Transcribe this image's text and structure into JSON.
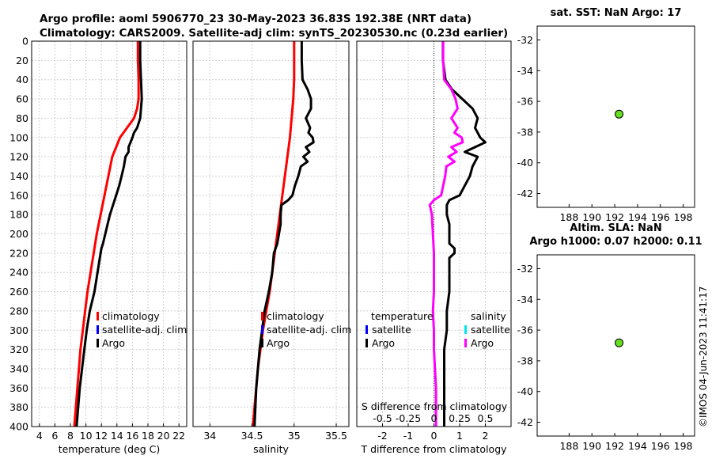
{
  "title_line1": "Argo profile: aoml 5906770_23 30-May-2023 36.83S 192.38E (NRT data)",
  "title_line2": "Climatology: CARS2009. Satellite-adj clim: synTS_20230530.nc (0.23d earlier)",
  "side_label": "©IMOS 04-Jun-2023 11:41:17",
  "colors": {
    "climatology": "#ff0000",
    "satellite": "#0000ff",
    "argo": "#000000",
    "satellite_s": "#00e5ee",
    "argo_diff": "#ff00ff",
    "marker": "#66dd22"
  },
  "depth_axis": {
    "ticks": [
      "0",
      "20",
      "40",
      "60",
      "80",
      "100",
      "120",
      "140",
      "160",
      "180",
      "200",
      "220",
      "240",
      "260",
      "280",
      "300",
      "320",
      "340",
      "360",
      "380",
      "400"
    ]
  },
  "chart_data": [
    {
      "type": "line",
      "name": "temperature",
      "xlabel": "temperature (deg C)",
      "xlim": [
        3,
        23
      ],
      "ylim": [
        0,
        400
      ],
      "xticks": [
        "4",
        "6",
        "8",
        "10",
        "12",
        "14",
        "16",
        "18",
        "20",
        "22"
      ],
      "legend": [
        "climatology",
        "satellite-adj. clim",
        "Argo"
      ],
      "series": [
        {
          "name": "climatology",
          "color": "red",
          "depth": [
            0,
            20,
            40,
            60,
            70,
            80,
            90,
            100,
            110,
            120,
            140,
            160,
            180,
            200,
            220,
            240,
            260,
            280,
            300,
            320,
            340,
            360,
            380,
            400
          ],
          "values": [
            16.7,
            16.7,
            16.8,
            16.8,
            16.6,
            16.2,
            15.3,
            14.4,
            13.9,
            13.4,
            12.9,
            12.4,
            11.9,
            11.4,
            11.0,
            10.6,
            10.2,
            9.9,
            9.6,
            9.3,
            9.1,
            8.9,
            8.7,
            8.5
          ]
        },
        {
          "name": "Argo",
          "color": "black",
          "depth": [
            0,
            20,
            40,
            60,
            70,
            80,
            90,
            95,
            100,
            110,
            115,
            120,
            130,
            140,
            150,
            160,
            170,
            180,
            190,
            200,
            210,
            215,
            225,
            240,
            260,
            280,
            300,
            320,
            340,
            360,
            380,
            400
          ],
          "values": [
            17.0,
            17.0,
            17.1,
            17.2,
            17.1,
            17.0,
            16.6,
            16.2,
            16.0,
            15.5,
            15.5,
            15.1,
            14.9,
            14.6,
            14.3,
            13.9,
            13.5,
            13.1,
            12.8,
            12.5,
            12.2,
            12.0,
            11.8,
            11.5,
            11.1,
            10.5,
            10.1,
            9.8,
            9.5,
            9.2,
            9.0,
            8.8
          ]
        }
      ]
    },
    {
      "type": "line",
      "name": "salinity",
      "xlabel": "salinity",
      "xlim": [
        33.8,
        35.65
      ],
      "ylim": [
        0,
        400
      ],
      "xticks": [
        "34",
        "34.5",
        "35",
        "35.5"
      ],
      "legend": [
        "climatology",
        "satellite-adj. clim",
        "Argo"
      ],
      "series": [
        {
          "name": "climatology",
          "color": "red",
          "depth": [
            0,
            20,
            40,
            60,
            80,
            100,
            120,
            140,
            160,
            180,
            200,
            220,
            240,
            260,
            280,
            300,
            320,
            340,
            360,
            380,
            400
          ],
          "values": [
            35.0,
            35.0,
            35.0,
            34.99,
            34.97,
            34.95,
            34.92,
            34.89,
            34.86,
            34.83,
            34.8,
            34.77,
            34.74,
            34.71,
            34.67,
            34.63,
            34.6,
            34.57,
            34.55,
            34.53,
            34.51
          ]
        },
        {
          "name": "Argo",
          "color": "black",
          "depth": [
            0,
            20,
            40,
            50,
            60,
            70,
            80,
            90,
            95,
            100,
            105,
            110,
            115,
            120,
            125,
            130,
            140,
            150,
            160,
            165,
            170,
            180,
            190,
            200,
            210,
            220,
            240,
            260,
            280,
            300,
            320,
            340,
            360,
            380,
            400
          ],
          "values": [
            35.09,
            35.09,
            35.1,
            35.16,
            35.2,
            35.2,
            35.14,
            35.19,
            35.17,
            35.22,
            35.23,
            35.14,
            35.18,
            35.11,
            35.16,
            35.08,
            35.05,
            35.01,
            34.98,
            34.93,
            34.85,
            34.84,
            34.84,
            34.82,
            34.8,
            34.76,
            34.74,
            34.7,
            34.65,
            34.62,
            34.59,
            34.57,
            34.55,
            34.54,
            34.53
          ]
        }
      ]
    },
    {
      "type": "line",
      "name": "difference",
      "xlabel": "T difference from climatology",
      "xlabel_top": "S difference from climatology",
      "xlim": [
        -3,
        3
      ],
      "ylim": [
        0,
        400
      ],
      "xticks": [
        "-2",
        "-1",
        "0",
        "1",
        "2"
      ],
      "xticks_top": [
        "-0.5",
        "-0.25",
        "0",
        "0.25",
        "0.5"
      ],
      "legend_t": {
        "header": "temperature",
        "items": [
          "satellite",
          "Argo"
        ]
      },
      "legend_s": {
        "header": "salinity",
        "items": [
          "satellite",
          "Argo"
        ]
      },
      "series": [
        {
          "name": "T Argo - clim",
          "color": "black",
          "depth": [
            0,
            20,
            40,
            50,
            60,
            70,
            80,
            90,
            95,
            100,
            105,
            110,
            115,
            120,
            130,
            140,
            150,
            160,
            165,
            170,
            180,
            190,
            200,
            210,
            215,
            220,
            225,
            240,
            260,
            280,
            300,
            320,
            340,
            360,
            380,
            400
          ],
          "values": [
            0.35,
            0.35,
            0.45,
            0.7,
            1.1,
            1.5,
            1.7,
            1.6,
            1.7,
            1.8,
            2.0,
            1.6,
            1.2,
            1.7,
            1.5,
            1.4,
            1.2,
            1.0,
            0.6,
            0.5,
            0.5,
            0.6,
            0.6,
            0.6,
            0.8,
            0.8,
            0.6,
            0.6,
            0.6,
            0.5,
            0.5,
            0.4,
            0.4,
            0.4,
            0.4,
            0.4
          ]
        },
        {
          "name": "S Argo - clim",
          "color": "magenta",
          "depth": [
            0,
            20,
            40,
            50,
            60,
            70,
            80,
            90,
            95,
            100,
            105,
            110,
            115,
            120,
            125,
            130,
            140,
            150,
            160,
            165,
            170,
            180,
            200,
            220,
            240,
            260,
            280,
            300,
            320,
            340,
            360,
            380,
            400
          ],
          "values": [
            0.09,
            0.09,
            0.1,
            0.17,
            0.21,
            0.23,
            0.17,
            0.23,
            0.2,
            0.27,
            0.28,
            0.17,
            0.22,
            0.14,
            0.2,
            0.12,
            0.11,
            0.09,
            0.07,
            0.0,
            -0.04,
            -0.02,
            -0.01,
            0.0,
            0.0,
            0.0,
            -0.01,
            0.0,
            0.0,
            0.01,
            0.02,
            0.02,
            0.02
          ]
        }
      ]
    },
    {
      "type": "scatter",
      "name": "sst_map",
      "title": "sat. SST: NaN Argo: 17",
      "xlim": [
        185.2,
        199
      ],
      "ylim": [
        -42.9,
        -31.1
      ],
      "xticks": [
        "188",
        "190",
        "192",
        "194",
        "196",
        "198"
      ],
      "yticks": [
        "-32",
        "-34",
        "-36",
        "-38",
        "-40",
        "-42"
      ],
      "points": [
        {
          "x": 192.38,
          "y": -36.83
        }
      ]
    },
    {
      "type": "scatter",
      "name": "sla_map",
      "title_line1": "Altim. SLA: NaN",
      "title_line2": "Argo h1000: 0.07 h2000: 0.11",
      "xlim": [
        185.2,
        199
      ],
      "ylim": [
        -42.9,
        -31.1
      ],
      "xticks": [
        "188",
        "190",
        "192",
        "194",
        "196",
        "198"
      ],
      "yticks": [
        "-32",
        "-34",
        "-36",
        "-38",
        "-40",
        "-42"
      ],
      "points": [
        {
          "x": 192.38,
          "y": -36.83
        }
      ]
    }
  ]
}
